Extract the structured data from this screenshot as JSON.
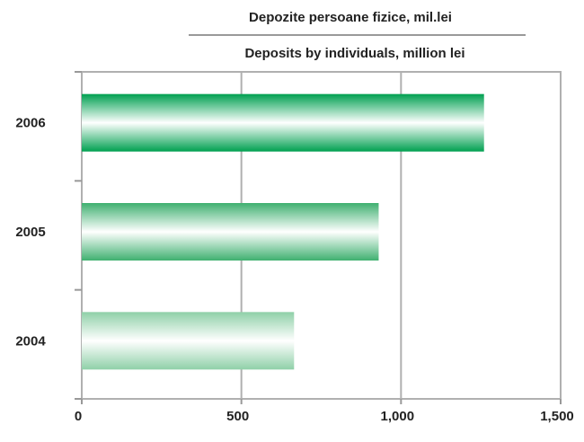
{
  "chart_data": {
    "type": "bar",
    "orientation": "horizontal",
    "title": "Depozite persoane fizice, mil.lei",
    "subtitle": "Deposits by individuals, million lei",
    "categories": [
      "2006",
      "2005",
      "2004"
    ],
    "values": [
      1260,
      930,
      665
    ],
    "xlim": [
      0,
      1500
    ],
    "x_ticks": [
      0,
      500,
      1000,
      1500
    ],
    "x_tick_labels": [
      "0",
      "500",
      "1,000",
      "1,500"
    ],
    "grid": "vertical",
    "legend": "none",
    "colors": {
      "2006": "#00a050",
      "2005": "#3fb070",
      "2004": "#8fd0a8",
      "grid": "#b0b0b0",
      "axis": "#999999"
    }
  }
}
